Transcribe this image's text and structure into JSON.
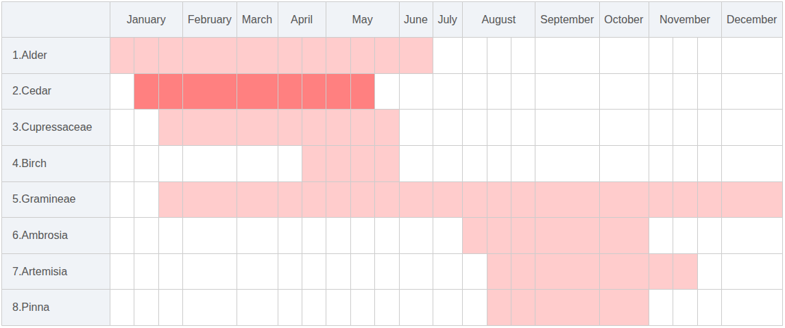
{
  "chart_data": {
    "type": "gantt",
    "months": [
      {
        "name": "January",
        "divisions": 3
      },
      {
        "name": "February",
        "divisions": 1
      },
      {
        "name": "March",
        "divisions": 1
      },
      {
        "name": "April",
        "divisions": 2
      },
      {
        "name": "May",
        "divisions": 3
      },
      {
        "name": "June",
        "divisions": 1
      },
      {
        "name": "July",
        "divisions": 1
      },
      {
        "name": "August",
        "divisions": 3
      },
      {
        "name": "September",
        "divisions": 1
      },
      {
        "name": "October",
        "divisions": 1
      },
      {
        "name": "November",
        "divisions": 3
      },
      {
        "name": "December",
        "divisions": 1
      }
    ],
    "series": [
      {
        "name": "1.Alder",
        "start": 0,
        "end": 10,
        "color": "#ffcccc"
      },
      {
        "name": "2.Cedar",
        "start": 1,
        "end": 8,
        "color": "#ff8080"
      },
      {
        "name": "3.Cupressaceae",
        "start": 2,
        "end": 9,
        "color": "#ffcccc"
      },
      {
        "name": "4.Birch",
        "start": 6,
        "end": 9,
        "color": "#ffcccc"
      },
      {
        "name": "5.Gramineae",
        "start": 2,
        "end": 20,
        "color": "#ffcccc"
      },
      {
        "name": "6.Ambrosia",
        "start": 12,
        "end": 16,
        "color": "#ffcccc"
      },
      {
        "name": "7.Artemisia",
        "start": 13,
        "end": 18,
        "color": "#ffcccc"
      },
      {
        "name": "8.Pinna",
        "start": 13,
        "end": 16,
        "color": "#ffcccc"
      }
    ]
  }
}
